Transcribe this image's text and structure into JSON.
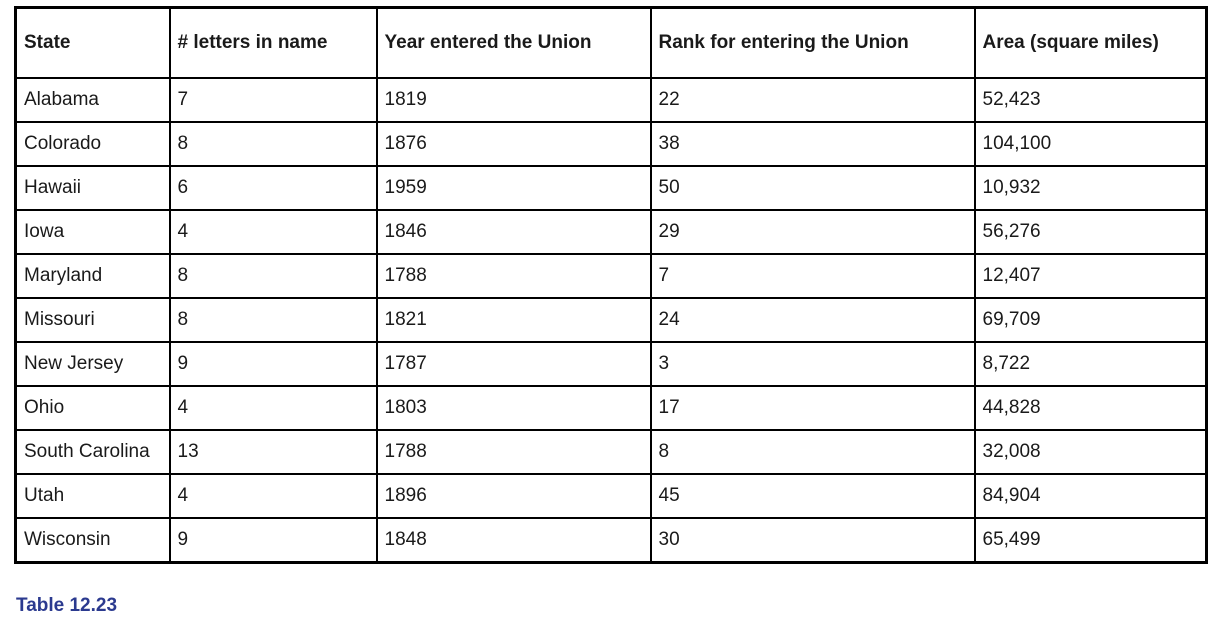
{
  "table": {
    "columns": [
      "State",
      "# letters in name",
      "Year entered the Union",
      "Rank for entering the Union",
      "Area (square miles)"
    ],
    "rows": [
      [
        "Alabama",
        "7",
        "1819",
        "22",
        "52,423"
      ],
      [
        "Colorado",
        "8",
        "1876",
        "38",
        "104,100"
      ],
      [
        "Hawaii",
        "6",
        "1959",
        "50",
        "10,932"
      ],
      [
        "Iowa",
        "4",
        "1846",
        "29",
        "56,276"
      ],
      [
        "Maryland",
        "8",
        "1788",
        "7",
        "12,407"
      ],
      [
        "Missouri",
        "8",
        "1821",
        "24",
        "69,709"
      ],
      [
        "New Jersey",
        "9",
        "1787",
        "3",
        "8,722"
      ],
      [
        "Ohio",
        "4",
        "1803",
        "17",
        "44,828"
      ],
      [
        "South Carolina",
        "13",
        "1788",
        "8",
        "32,008"
      ],
      [
        "Utah",
        "4",
        "1896",
        "45",
        "84,904"
      ],
      [
        "Wisconsin",
        "9",
        "1848",
        "30",
        "65,499"
      ]
    ]
  },
  "caption": "Table 12.23",
  "colors": {
    "border": "#000000",
    "caption_text": "#2b3a8f",
    "cell_text": "#1a1a1a",
    "background": "#ffffff"
  }
}
